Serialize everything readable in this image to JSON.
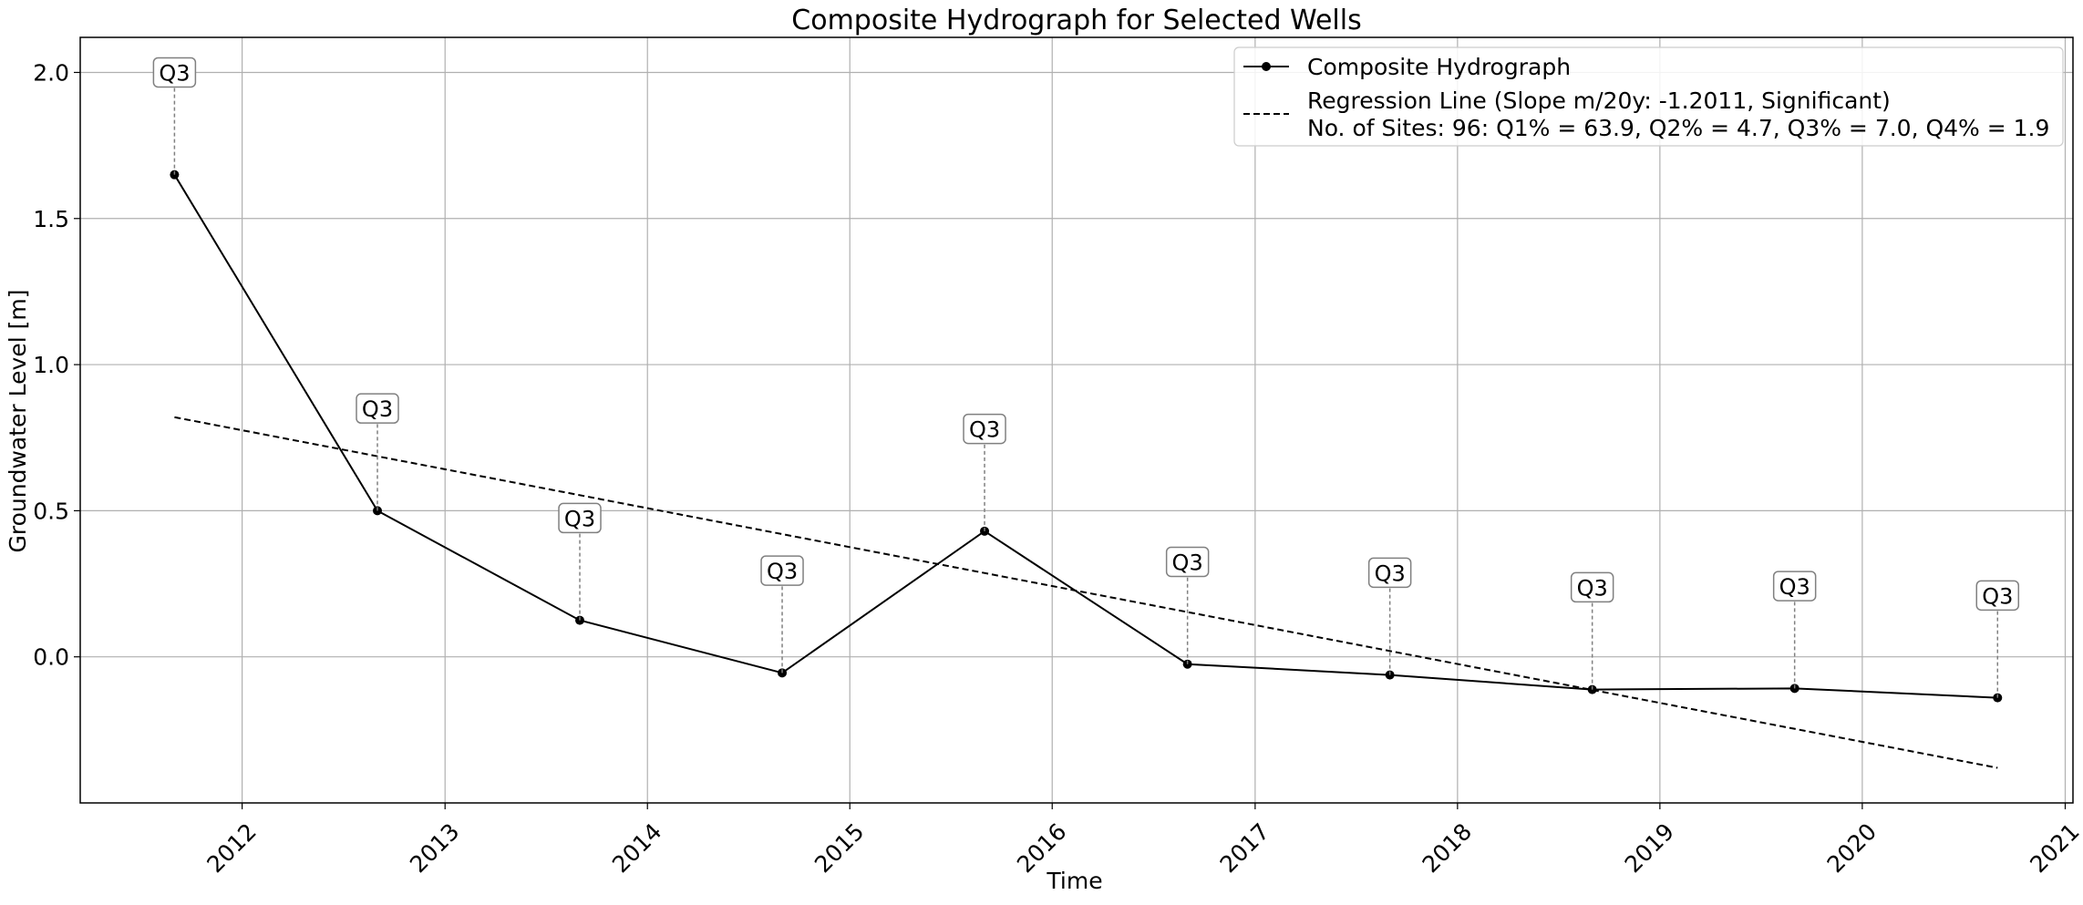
{
  "chart_data": {
    "type": "line",
    "title": "Composite Hydrograph for Selected Wells",
    "xlabel": "Time",
    "ylabel": "Groundwater Level [m]",
    "x_ticks": [
      "2012",
      "2013",
      "2014",
      "2015",
      "2016",
      "2017",
      "2018",
      "2019",
      "2020",
      "2021"
    ],
    "y_ticks": [
      "0.0",
      "0.5",
      "1.0",
      "1.5",
      "2.0"
    ],
    "xlim": [
      "2011-03-15",
      "2021-01-15"
    ],
    "ylim": [
      -0.5,
      2.12
    ],
    "grid": true,
    "legend_position": "top-right",
    "series": [
      {
        "name": "Composite Hydrograph",
        "style": "solid-with-markers",
        "color": "#000000",
        "x": [
          "2011-09-01",
          "2012-09-01",
          "2013-09-01",
          "2014-09-01",
          "2015-09-01",
          "2016-09-01",
          "2017-09-01",
          "2018-09-01",
          "2019-09-01",
          "2020-09-01"
        ],
        "y": [
          1.65,
          0.5,
          0.125,
          -0.055,
          0.43,
          -0.025,
          -0.062,
          -0.112,
          -0.108,
          -0.14
        ]
      },
      {
        "name": "Regression Line (Slope m/20y: -1.2011, Significant)",
        "style": "dashed",
        "color": "#000000",
        "x": [
          "2011-09-01",
          "2020-09-01"
        ],
        "y": [
          0.82,
          -0.38
        ]
      }
    ],
    "legend_extra_line": "No. of Sites: 96: Q1% = 63.9, Q2% = 4.7, Q3% = 7.0, Q4% = 1.9",
    "annotations": {
      "label": "Q3",
      "offsets_y": [
        0.35,
        0.35,
        0.35,
        0.35,
        0.35,
        0.35,
        0.35,
        0.35,
        0.35,
        0.35
      ]
    }
  }
}
